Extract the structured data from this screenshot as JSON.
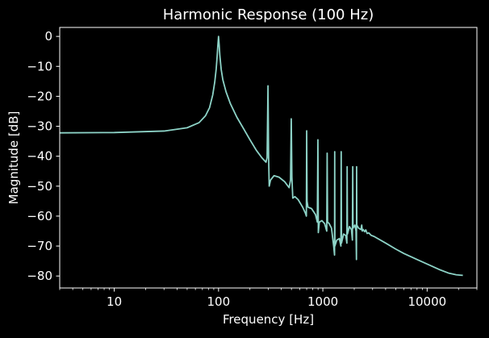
{
  "chart_data": {
    "type": "line",
    "title": "Harmonic Response (100 Hz)",
    "xlabel": "Frequency [Hz]",
    "ylabel": "Magnitude [dB]",
    "xscale": "log",
    "xlim": [
      3,
      30000
    ],
    "ylim": [
      -84,
      3
    ],
    "xticks": [
      {
        "value": 10,
        "label": "10"
      },
      {
        "value": 100,
        "label": "100"
      },
      {
        "value": 1000,
        "label": "1000"
      },
      {
        "value": 10000,
        "label": "10000"
      }
    ],
    "yticks": [
      {
        "value": 0,
        "label": "0"
      },
      {
        "value": -10,
        "label": "−10"
      },
      {
        "value": -20,
        "label": "−20"
      },
      {
        "value": -30,
        "label": "−30"
      },
      {
        "value": -40,
        "label": "−40"
      },
      {
        "value": -50,
        "label": "−50"
      },
      {
        "value": -60,
        "label": "−60"
      },
      {
        "value": -70,
        "label": "−70"
      },
      {
        "value": -80,
        "label": "−80"
      }
    ],
    "grid": false,
    "background": "#000000",
    "line_color": "#8dd3c7",
    "series": [
      {
        "values": [
          [
            3,
            -32.2
          ],
          [
            10,
            -32.1
          ],
          [
            30,
            -31.6
          ],
          [
            50,
            -30.5
          ],
          [
            65,
            -28.8
          ],
          [
            75,
            -26.5
          ],
          [
            82,
            -23.8
          ],
          [
            88,
            -19.5
          ],
          [
            92,
            -15.2
          ],
          [
            95,
            -10.8
          ],
          [
            97,
            -6.5
          ],
          [
            98.5,
            -3
          ],
          [
            100,
            0
          ],
          [
            101.5,
            -3
          ],
          [
            103,
            -6.5
          ],
          [
            106,
            -11
          ],
          [
            110,
            -14.5
          ],
          [
            118,
            -18.5
          ],
          [
            130,
            -22.5
          ],
          [
            150,
            -27
          ],
          [
            175,
            -31
          ],
          [
            200,
            -34.5
          ],
          [
            230,
            -38
          ],
          [
            260,
            -40.5
          ],
          [
            285,
            -42
          ],
          [
            292,
            -40.5
          ],
          [
            298,
            -16.5
          ],
          [
            302,
            -40
          ],
          [
            306,
            -50
          ],
          [
            315,
            -48
          ],
          [
            340,
            -46.5
          ],
          [
            380,
            -47
          ],
          [
            430,
            -48.5
          ],
          [
            475,
            -50.5
          ],
          [
            490,
            -48
          ],
          [
            498,
            -27.5
          ],
          [
            505,
            -47
          ],
          [
            515,
            -54
          ],
          [
            540,
            -53.5
          ],
          [
            580,
            -54.5
          ],
          [
            640,
            -57
          ],
          [
            680,
            -59
          ],
          [
            695,
            -60
          ],
          [
            700,
            -31.5
          ],
          [
            706,
            -55
          ],
          [
            720,
            -57
          ],
          [
            780,
            -57.5
          ],
          [
            850,
            -59.5
          ],
          [
            885,
            -62
          ],
          [
            897,
            -34.5
          ],
          [
            905,
            -65.5
          ],
          [
            925,
            -62
          ],
          [
            980,
            -61.5
          ],
          [
            1040,
            -62.5
          ],
          [
            1090,
            -65
          ],
          [
            1100,
            -39
          ],
          [
            1110,
            -62
          ],
          [
            1150,
            -62.5
          ],
          [
            1210,
            -64
          ],
          [
            1270,
            -70
          ],
          [
            1295,
            -73
          ],
          [
            1300,
            -38.5
          ],
          [
            1305,
            -70
          ],
          [
            1360,
            -68
          ],
          [
            1440,
            -67.5
          ],
          [
            1490,
            -70
          ],
          [
            1500,
            -38.5
          ],
          [
            1510,
            -69
          ],
          [
            1580,
            -66
          ],
          [
            1660,
            -66.5
          ],
          [
            1700,
            -69
          ],
          [
            1710,
            -43.5
          ],
          [
            1722,
            -66
          ],
          [
            1800,
            -63.5
          ],
          [
            1880,
            -64.5
          ],
          [
            1920,
            -68
          ],
          [
            1935,
            -43.5
          ],
          [
            1948,
            -64
          ],
          [
            2030,
            -63
          ],
          [
            2080,
            -65
          ],
          [
            2100,
            -74.5
          ],
          [
            2108,
            -43.5
          ],
          [
            2118,
            -63
          ],
          [
            2200,
            -64
          ],
          [
            2320,
            -64.5
          ],
          [
            2360,
            -63
          ],
          [
            2390,
            -65
          ],
          [
            2440,
            -64.5
          ],
          [
            2520,
            -65.2
          ],
          [
            2580,
            -64.6
          ],
          [
            2660,
            -65.8
          ],
          [
            2760,
            -65.6
          ],
          [
            2900,
            -66.4
          ],
          [
            3100,
            -66.8
          ],
          [
            4000,
            -69
          ],
          [
            5000,
            -71
          ],
          [
            6000,
            -72.5
          ],
          [
            8000,
            -74.5
          ],
          [
            10000,
            -76
          ],
          [
            13000,
            -77.8
          ],
          [
            16000,
            -79
          ],
          [
            19000,
            -79.6
          ],
          [
            22000,
            -79.8
          ]
        ]
      }
    ]
  }
}
